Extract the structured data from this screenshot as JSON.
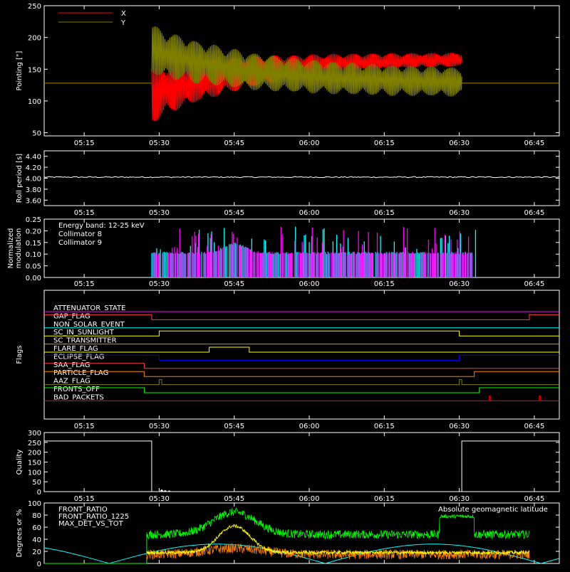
{
  "x_ticks": [
    "05:15",
    "05:30",
    "05:45",
    "06:00",
    "06:15",
    "06:30",
    "06:45"
  ],
  "x_tick_minutes": [
    15,
    30,
    45,
    60,
    75,
    90,
    105
  ],
  "chart_data": [
    {
      "type": "line",
      "ylabel": "Pointing [\"]",
      "ylim": [
        45,
        250
      ],
      "yticks": [
        50,
        100,
        150,
        200,
        250
      ],
      "legend": [
        {
          "name": "X",
          "color": "#ff0000"
        },
        {
          "name": "Y",
          "color": "#808000"
        }
      ],
      "series": [
        {
          "name": "X",
          "color": "#ff0000",
          "start_min": 28.5,
          "end_min": 90.5,
          "center_start": 110,
          "center_end": 165,
          "amp_start": 45,
          "amp_end": 8,
          "baseline": 128
        },
        {
          "name": "Y",
          "color": "#808000",
          "start_min": 28.5,
          "end_min": 90.5,
          "center_start": 180,
          "center_end": 130,
          "amp_start": 40,
          "amp_end": 22,
          "baseline": 128
        }
      ]
    },
    {
      "type": "line",
      "ylabel": "Roll period [s]",
      "ylim": [
        3.5,
        4.5
      ],
      "yticks": [
        3.6,
        3.8,
        4.0,
        4.2,
        4.4
      ],
      "series": [
        {
          "name": "Roll period",
          "color": "#ffffff",
          "value": 4.02
        }
      ]
    },
    {
      "type": "line",
      "ylabel": "Normalized modulation",
      "ylim": [
        0,
        0.25
      ],
      "yticks": [
        0.0,
        0.05,
        0.1,
        0.15,
        0.2,
        0.25
      ],
      "annotation": "Energy band: 12-25 keV",
      "legend": [
        {
          "name": "Collimator 8",
          "color": "#00ffff"
        },
        {
          "name": "Collimator 9",
          "color": "#ff00ff"
        }
      ],
      "series": [
        {
          "name": "Collimator 8",
          "color": "#00ffff",
          "start_min": 28.5,
          "end_min": 93.5,
          "level": 0.1
        },
        {
          "name": "Collimator 9",
          "color": "#ff00ff",
          "start_min": 28.5,
          "end_min": 93.5,
          "level": 0.1
        }
      ]
    },
    {
      "type": "line",
      "ylabel": "Flags",
      "flags": [
        {
          "name": "ATTENUATOR_STATE",
          "color": "#ff00ff",
          "transitions": []
        },
        {
          "name": "GAP_FLAG",
          "color": "#ff4040",
          "transitions": [
            [
              0,
              1
            ],
            [
              28.5,
              0
            ],
            [
              104,
              1
            ]
          ]
        },
        {
          "name": "NON_SOLAR_EVENT",
          "color": "#00ffff",
          "transitions": []
        },
        {
          "name": "SC_IN_SUNLIGHT",
          "color": "#ffff00",
          "transitions": [
            [
              0,
              0
            ],
            [
              30,
              1
            ],
            [
              90,
              0
            ]
          ]
        },
        {
          "name": "SC_TRANSMITTER",
          "color": "#ff8000",
          "transitions": []
        },
        {
          "name": "FLARE_FLAG",
          "color": "#ffff00",
          "transitions": [
            [
              0,
              0
            ],
            [
              40,
              1
            ],
            [
              48,
              0
            ]
          ]
        },
        {
          "name": "ECLIPSE_FLAG",
          "color": "#0000ff",
          "transitions": [
            [
              0,
              1
            ],
            [
              30,
              0
            ],
            [
              90,
              1
            ]
          ]
        },
        {
          "name": "SAA_FLAG",
          "color": "#ff4040",
          "transitions": [
            [
              0,
              1
            ],
            [
              27,
              0
            ],
            [
              104,
              0
            ]
          ]
        },
        {
          "name": "PARTICLE_FLAG",
          "color": "#ff8000",
          "transitions": [
            [
              0,
              1
            ],
            [
              27,
              0
            ],
            [
              93,
              1
            ]
          ]
        },
        {
          "name": "AAZ_FLAG",
          "color": "#808000",
          "transitions": [
            [
              0,
              0
            ],
            [
              30,
              1
            ],
            [
              30.5,
              0
            ],
            [
              90,
              1
            ],
            [
              90.5,
              0
            ]
          ]
        },
        {
          "name": "FRONTS_OFF",
          "color": "#00ff00",
          "transitions": [
            [
              0,
              1
            ],
            [
              27,
              0
            ],
            [
              94,
              1
            ]
          ]
        },
        {
          "name": "BAD_PACKETS",
          "color": "#ff0000",
          "transitions": [
            [
              0,
              0
            ],
            [
              96,
              1
            ],
            [
              96.2,
              0
            ],
            [
              106,
              1
            ],
            [
              106.2,
              0
            ]
          ]
        }
      ]
    },
    {
      "type": "line",
      "ylabel": "Quality",
      "ylim": [
        0,
        300
      ],
      "yticks": [
        0,
        50,
        100,
        150,
        200,
        250,
        300
      ],
      "series": [
        {
          "name": "Quality",
          "color": "#ffffff",
          "high": 257,
          "low": 0,
          "drop_min": 28.5,
          "rise_min": 90.5
        }
      ]
    },
    {
      "type": "line",
      "ylabel": "Degrees or %",
      "ylim": [
        0,
        100
      ],
      "yticks": [
        0,
        20,
        40,
        60,
        80,
        100
      ],
      "legend": [
        {
          "name": "FRONT_RATIO",
          "color": "#ffff00"
        },
        {
          "name": "FRONT_RATIO_1225",
          "color": "#00ff00"
        },
        {
          "name": "MAX_DET_VS_TOT",
          "color": "#ff8000"
        }
      ],
      "annotation": "Absolute geomagnetic latitude",
      "annotation_color": "#00ffff",
      "series": [
        {
          "name": "Absolute geomagnetic latitude",
          "color": "#00ffff"
        },
        {
          "name": "FRONT_RATIO",
          "color": "#ffff00",
          "peak": 62,
          "peak_min": 45
        },
        {
          "name": "FRONT_RATIO_1225",
          "color": "#00ff00",
          "base": 48,
          "peak": 85,
          "peak_min": 45,
          "step": 78,
          "step_start": 86,
          "step_end": 93
        },
        {
          "name": "MAX_DET_VS_TOT",
          "color": "#ff8000",
          "base": 15
        }
      ]
    }
  ]
}
